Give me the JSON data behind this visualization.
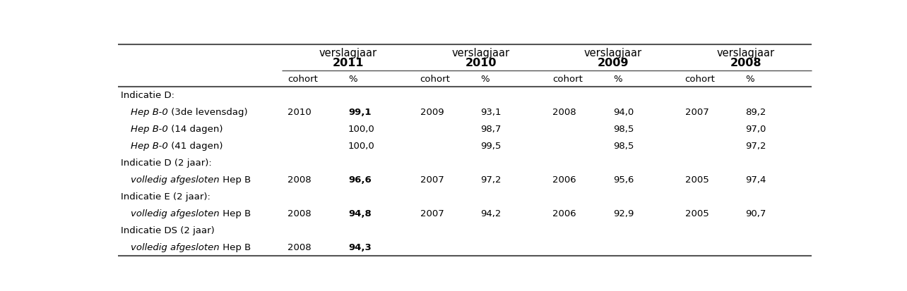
{
  "col_headers": [
    {
      "top": "verslagjaar",
      "year": "2011"
    },
    {
      "top": "verslagjaar",
      "year": "2010"
    },
    {
      "top": "verslagjaar",
      "year": "2009"
    },
    {
      "top": "verslagjaar",
      "year": "2008"
    }
  ],
  "rows": [
    {
      "label_parts": [
        {
          "text": "Indicatie D:",
          "style": "normal"
        }
      ],
      "data": [
        "",
        "",
        "",
        "",
        "",
        "",
        "",
        ""
      ],
      "bold_pct": false
    },
    {
      "label_parts": [
        {
          "text": "Hep B-0",
          "style": "italic"
        },
        {
          "text": " (3de levensdag)",
          "style": "normal"
        }
      ],
      "data": [
        "2010",
        "99,1",
        "2009",
        "93,1",
        "2008",
        "94,0",
        "2007",
        "89,2"
      ],
      "bold_pct": true
    },
    {
      "label_parts": [
        {
          "text": "Hep B-0",
          "style": "italic"
        },
        {
          "text": " (14 dagen)",
          "style": "normal"
        }
      ],
      "data": [
        "",
        "100,0",
        "",
        "98,7",
        "",
        "98,5",
        "",
        "97,0"
      ],
      "bold_pct": false
    },
    {
      "label_parts": [
        {
          "text": "Hep B-0",
          "style": "italic"
        },
        {
          "text": " (41 dagen)",
          "style": "normal"
        }
      ],
      "data": [
        "",
        "100,0",
        "",
        "99,5",
        "",
        "98,5",
        "",
        "97,2"
      ],
      "bold_pct": false
    },
    {
      "label_parts": [
        {
          "text": "Indicatie D (2 jaar):",
          "style": "normal"
        }
      ],
      "data": [
        "",
        "",
        "",
        "",
        "",
        "",
        "",
        ""
      ],
      "bold_pct": false
    },
    {
      "label_parts": [
        {
          "text": "volledig afgesloten",
          "style": "italic"
        },
        {
          "text": " Hep B",
          "style": "normal"
        }
      ],
      "data": [
        "2008",
        "96,6",
        "2007",
        "97,2",
        "2006",
        "95,6",
        "2005",
        "97,4"
      ],
      "bold_pct": true
    },
    {
      "label_parts": [
        {
          "text": "Indicatie E (2 jaar):",
          "style": "normal"
        }
      ],
      "data": [
        "",
        "",
        "",
        "",
        "",
        "",
        "",
        ""
      ],
      "bold_pct": false
    },
    {
      "label_parts": [
        {
          "text": "volledig afgesloten",
          "style": "italic"
        },
        {
          "text": " Hep B",
          "style": "normal"
        }
      ],
      "data": [
        "2008",
        "94,8",
        "2007",
        "94,2",
        "2006",
        "92,9",
        "2005",
        "90,7"
      ],
      "bold_pct": true
    },
    {
      "label_parts": [
        {
          "text": "Indicatie DS (2 jaar)",
          "style": "normal"
        }
      ],
      "data": [
        "",
        "",
        "",
        "",
        "",
        "",
        "",
        ""
      ],
      "bold_pct": false
    },
    {
      "label_parts": [
        {
          "text": "volledig afgesloten",
          "style": "italic"
        },
        {
          "text": " Hep B",
          "style": "normal"
        }
      ],
      "data": [
        "2008",
        "94,3",
        "",
        "",
        "",
        "",
        "",
        ""
      ],
      "bold_pct": true
    }
  ],
  "indent_rows": [
    1,
    2,
    3,
    5,
    7,
    9
  ],
  "bg_color": "#ffffff",
  "text_color": "#000000",
  "line_color": "#555555",
  "fs_header": 10.5,
  "fs_subheader": 9.5,
  "fs_data": 9.5
}
